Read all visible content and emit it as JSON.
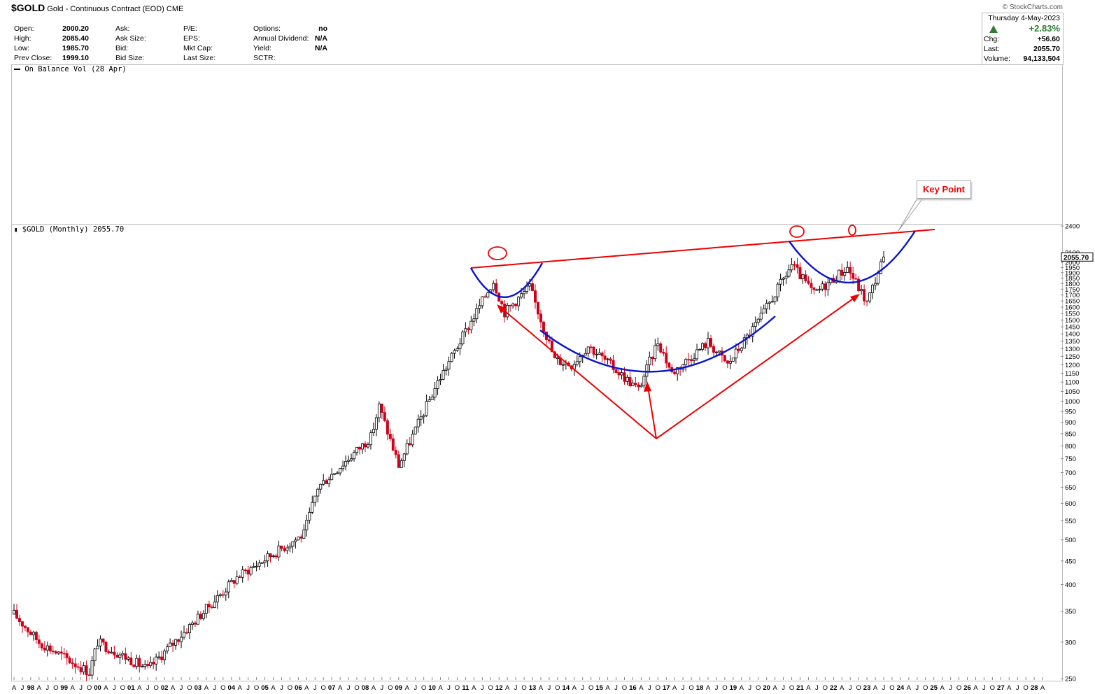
{
  "header": {
    "symbol": "$GOLD",
    "name": "Gold - Continuous Contract (EOD)",
    "exchange": "CME",
    "brand": "© StockCharts.com"
  },
  "quote": {
    "open_label": "Open:",
    "open": "2000.20",
    "high_label": "High:",
    "high": "2085.40",
    "low_label": "Low:",
    "low": "1985.70",
    "prev_label": "Prev Close:",
    "prev": "1999.10",
    "ask_label": "Ask:",
    "asksize_label": "Ask Size:",
    "bid_label": "Bid:",
    "bidsize_label": "Bid Size:",
    "pe_label": "P/E:",
    "eps_label": "EPS:",
    "mktcap_label": "Mkt Cap:",
    "lastsize_label": "Last Size:",
    "options_label": "Options:",
    "options": "no",
    "div_label": "Annual Dividend:",
    "div": "N/A",
    "yield_label": "Yield:",
    "yield": "N/A",
    "sctr_label": "SCTR:"
  },
  "summary": {
    "date": "Thursday   4-May-2023",
    "pct": "+2.83%",
    "chg_label": "Chg:",
    "chg": "+56.60",
    "last_label": "Last:",
    "last": "2055.70",
    "vol_label": "Volume:",
    "vol": "94,133,504",
    "up_color": "#2e7d32"
  },
  "obv_label": "On Balance Vol (28 Apr)",
  "main_label": "$GOLD (Monthly) 2055.70",
  "annotation": "Key Point",
  "chart_data": {
    "type": "candlestick",
    "scale": "log",
    "ylim": [
      250,
      2400
    ],
    "last_value_label": "2055.70",
    "yticks": [
      250,
      300,
      350,
      400,
      450,
      500,
      550,
      600,
      650,
      700,
      750,
      800,
      850,
      900,
      950,
      1000,
      1050,
      1100,
      1150,
      1200,
      1250,
      1300,
      1350,
      1400,
      1450,
      1500,
      1550,
      1600,
      1650,
      1700,
      1750,
      1800,
      1850,
      1900,
      1950,
      2000,
      2050,
      2100,
      2400
    ],
    "x_range": [
      "1997-04",
      "2028-06"
    ],
    "x_tick_labels": [
      "A",
      "J",
      "98",
      "A",
      "J",
      "O",
      "99",
      "A",
      "J",
      "O",
      "00",
      "A",
      "J",
      "O",
      "01",
      "A",
      "J",
      "O",
      "02",
      "A",
      "J",
      "O",
      "03",
      "A",
      "J",
      "O",
      "04",
      "A",
      "J",
      "O",
      "05",
      "A",
      "J",
      "O",
      "06",
      "A",
      "J",
      "O",
      "07",
      "A",
      "J",
      "O",
      "08",
      "A",
      "J",
      "O",
      "09",
      "A",
      "J",
      "O",
      "10",
      "A",
      "J",
      "O",
      "11",
      "A",
      "J",
      "O",
      "12",
      "A",
      "J",
      "O",
      "13",
      "A",
      "J",
      "O",
      "14",
      "A",
      "J",
      "O",
      "15",
      "A",
      "J",
      "O",
      "16",
      "A",
      "J",
      "O",
      "17",
      "A",
      "J",
      "O",
      "18",
      "A",
      "J",
      "O",
      "19",
      "A",
      "J",
      "O",
      "20",
      "A",
      "J",
      "O",
      "21",
      "A",
      "J",
      "O",
      "22",
      "A",
      "J",
      "O",
      "23",
      "A",
      "J",
      "O",
      "24",
      "A",
      "J",
      "O",
      "25",
      "A",
      "J",
      "O",
      "26",
      "A",
      "J",
      "O",
      "27",
      "A",
      "J",
      "O",
      "28",
      "A"
    ],
    "close_path": [
      [
        "1997-04",
        345
      ],
      [
        "1998-01",
        300
      ],
      [
        "1999-07",
        258
      ],
      [
        "1999-10",
        300
      ],
      [
        "2001-04",
        262
      ],
      [
        "2002-06",
        320
      ],
      [
        "2003-12",
        415
      ],
      [
        "2005-12",
        515
      ],
      [
        "2006-05",
        650
      ],
      [
        "2007-12",
        835
      ],
      [
        "2008-03",
        975
      ],
      [
        "2008-10",
        725
      ],
      [
        "2009-12",
        1100
      ],
      [
        "2011-08",
        1825
      ],
      [
        "2011-12",
        1560
      ],
      [
        "2012-09",
        1770
      ],
      [
        "2013-06",
        1230
      ],
      [
        "2013-12",
        1200
      ],
      [
        "2014-06",
        1320
      ],
      [
        "2015-12",
        1060
      ],
      [
        "2016-07",
        1350
      ],
      [
        "2016-12",
        1150
      ],
      [
        "2018-01",
        1345
      ],
      [
        "2018-08",
        1200
      ],
      [
        "2019-08",
        1520
      ],
      [
        "2020-07",
        1975
      ],
      [
        "2021-03",
        1710
      ],
      [
        "2022-03",
        1950
      ],
      [
        "2022-10",
        1635
      ],
      [
        "2023-04",
        2055.7
      ]
    ]
  }
}
